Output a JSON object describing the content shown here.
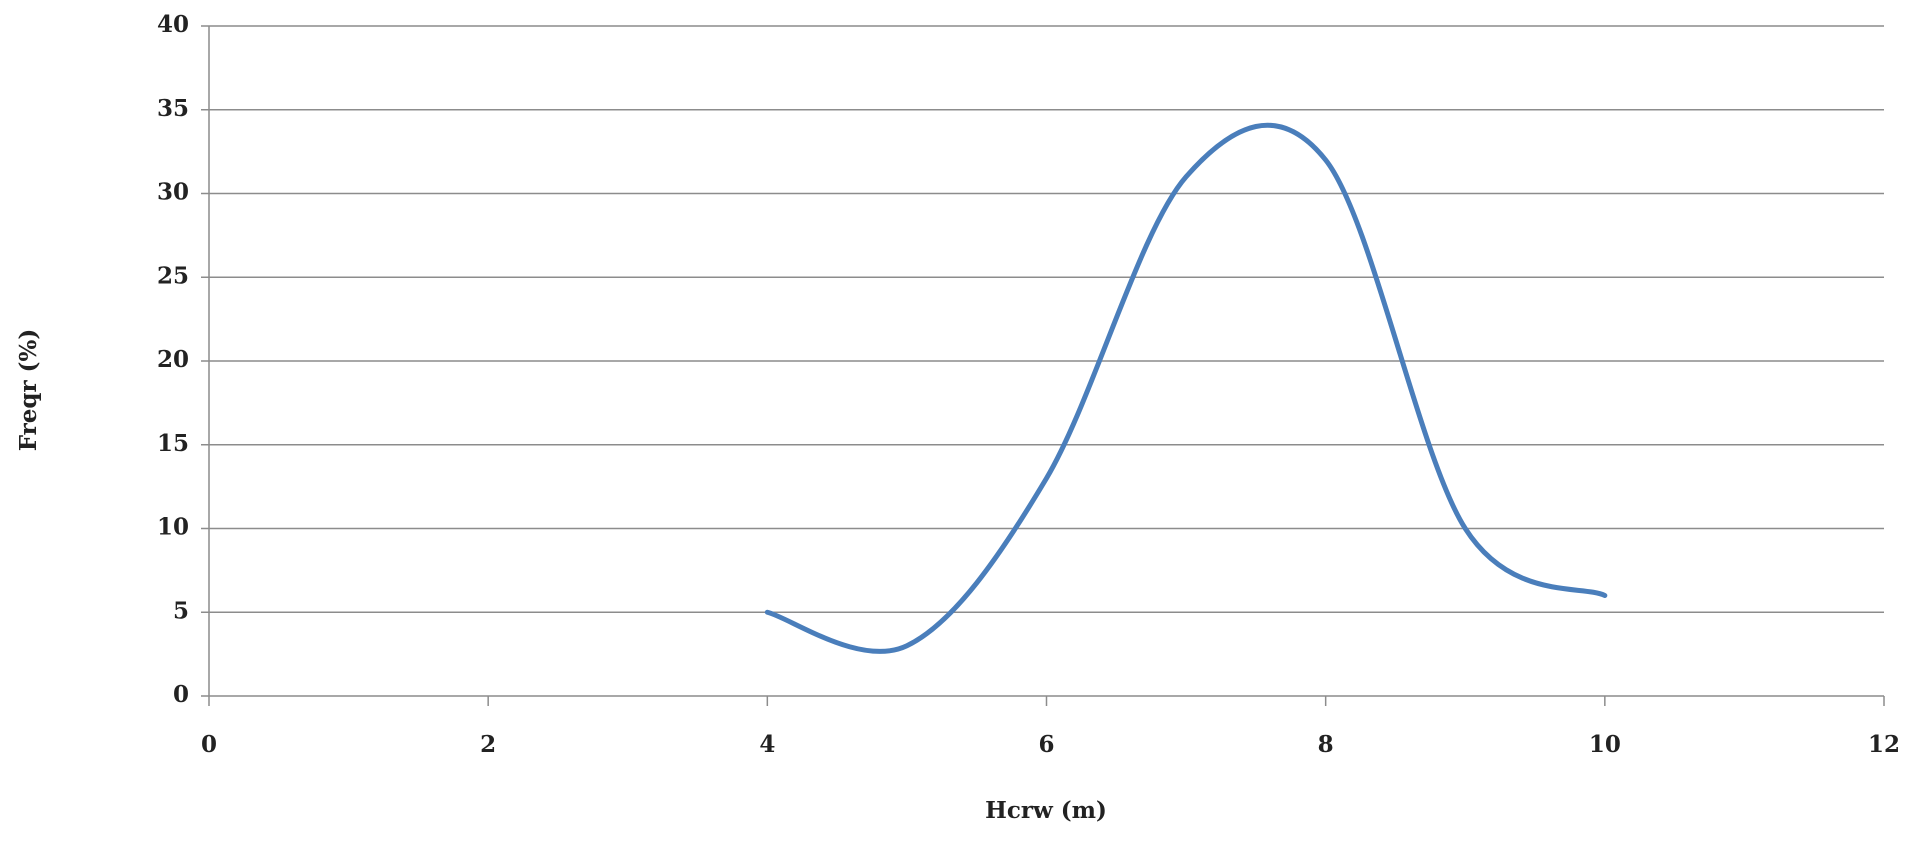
{
  "chart_data": {
    "type": "line",
    "x_label": "Hcrw (m)",
    "y_label": "Freqr (%)",
    "series": [
      {
        "color": "#4a7ebb",
        "x": [
          4,
          5,
          6,
          7,
          8,
          9,
          10
        ],
        "values": [
          5,
          3,
          13,
          31,
          32,
          10,
          6
        ]
      }
    ],
    "xlim": [
      0,
      12
    ],
    "xticks": [
      0,
      2,
      4,
      6,
      8,
      10,
      12
    ],
    "ylim": [
      0,
      40
    ],
    "yticks": [
      0,
      5,
      10,
      15,
      20,
      25,
      30,
      35,
      40
    ],
    "grid": true,
    "smooth": true
  }
}
